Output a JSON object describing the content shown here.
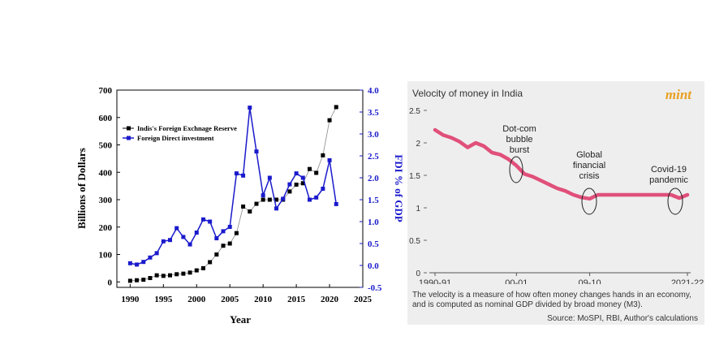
{
  "colors": {
    "reserve": "#000000",
    "fdi": "#1a1acc",
    "velocity": "#e0507a",
    "mint": "#e8a020",
    "panel_bg": "#eeeeee"
  },
  "left_chart": {
    "type": "line",
    "x_label": "Year",
    "y_label_left": "Billions of Dollars",
    "y_label_right": "FDI % of GDP",
    "x_ticks": [
      "1990",
      "1995",
      "2000",
      "2005",
      "2010",
      "2015",
      "2020",
      "2025"
    ],
    "y_ticks_left": [
      "0",
      "100",
      "200",
      "300",
      "400",
      "500",
      "600",
      "700"
    ],
    "y_ticks_right": [
      "-0.5",
      "0.0",
      "0.5",
      "1.0",
      "1.5",
      "2.0",
      "2.5",
      "3.0",
      "3.5",
      "4.0"
    ],
    "legend": [
      "Indis's Foreign Exchnage Reserve",
      "Foreign Direct investment"
    ]
  },
  "right_chart": {
    "title": "Velocity of money in India",
    "brand": "mint",
    "y_ticks": [
      "2.5",
      "2",
      "1.5",
      "1",
      "0.5",
      "0"
    ],
    "x_ticks": [
      "1990-91",
      "00-01",
      "09-10",
      "2021-22"
    ],
    "annotations": [
      {
        "id": "dotcom",
        "lines": [
          "Dot-com",
          "bubble",
          "burst"
        ]
      },
      {
        "id": "gfc",
        "lines": [
          "Global",
          "financial",
          "crisis"
        ]
      },
      {
        "id": "covid",
        "lines": [
          "Covid-19",
          "pandemic"
        ]
      }
    ],
    "caption": "The velocity is a measure of how often money changes hands in an economy, and is computed as nominal GDP divided by broad money (M3).",
    "source": "Source: MoSPI, RBI, Author's calculations"
  },
  "chart_data": [
    {
      "type": "line",
      "title": "",
      "xlabel": "Year",
      "ylabel": "Billions of Dollars",
      "y2label": "FDI % of GDP",
      "xlim": [
        1988,
        2025
      ],
      "ylim": [
        -20,
        700
      ],
      "y2lim": [
        -0.5,
        4.0
      ],
      "series": [
        {
          "name": "Indis's Foreign Exchnage Reserve",
          "axis": "left",
          "x": [
            1990,
            1991,
            1992,
            1993,
            1994,
            1995,
            1996,
            1997,
            1998,
            1999,
            2000,
            2001,
            2002,
            2003,
            2004,
            2005,
            2006,
            2007,
            2008,
            2009,
            2010,
            2011,
            2012,
            2013,
            2014,
            2015,
            2016,
            2017,
            2018,
            2019,
            2020,
            2021
          ],
          "values": [
            4,
            6,
            8,
            14,
            24,
            22,
            24,
            28,
            30,
            34,
            42,
            50,
            72,
            100,
            132,
            140,
            178,
            275,
            257,
            285,
            300,
            300,
            300,
            300,
            330,
            355,
            360,
            412,
            398,
            462,
            590,
            638
          ]
        },
        {
          "name": "Foreign Direct investment",
          "axis": "right",
          "x": [
            1990,
            1991,
            1992,
            1993,
            1994,
            1995,
            1996,
            1997,
            1998,
            1999,
            2000,
            2001,
            2002,
            2003,
            2004,
            2005,
            2006,
            2007,
            2008,
            2009,
            2010,
            2011,
            2012,
            2013,
            2014,
            2015,
            2016,
            2017,
            2018,
            2019,
            2020,
            2021
          ],
          "values": [
            0.05,
            0.02,
            0.08,
            0.18,
            0.28,
            0.55,
            0.58,
            0.85,
            0.65,
            0.48,
            0.75,
            1.05,
            1.0,
            0.62,
            0.78,
            0.88,
            2.1,
            2.05,
            3.6,
            2.6,
            1.6,
            2.0,
            1.3,
            1.52,
            1.85,
            2.1,
            2.0,
            1.5,
            1.55,
            1.75,
            2.4,
            1.4
          ]
        }
      ]
    },
    {
      "type": "line",
      "title": "Velocity of money in India",
      "xlabel": "",
      "ylabel": "",
      "ylim": [
        0,
        2.5
      ],
      "categories": [
        "1990-91",
        "00-01",
        "09-10",
        "2021-22"
      ],
      "series": [
        {
          "name": "Velocity of money",
          "x": [
            1990,
            1991,
            1992,
            1993,
            1994,
            1995,
            1996,
            1997,
            1998,
            1999,
            2000,
            2001,
            2002,
            2003,
            2004,
            2005,
            2006,
            2007,
            2008,
            2009,
            2010,
            2011,
            2012,
            2013,
            2014,
            2015,
            2016,
            2017,
            2018,
            2019,
            2020,
            2021
          ],
          "values": [
            2.2,
            2.12,
            2.08,
            2.02,
            1.93,
            2.0,
            1.95,
            1.85,
            1.82,
            1.75,
            1.65,
            1.52,
            1.48,
            1.42,
            1.36,
            1.3,
            1.26,
            1.2,
            1.16,
            1.14,
            1.2,
            1.2,
            1.2,
            1.2,
            1.2,
            1.2,
            1.2,
            1.2,
            1.2,
            1.2,
            1.15,
            1.2
          ]
        }
      ]
    }
  ]
}
